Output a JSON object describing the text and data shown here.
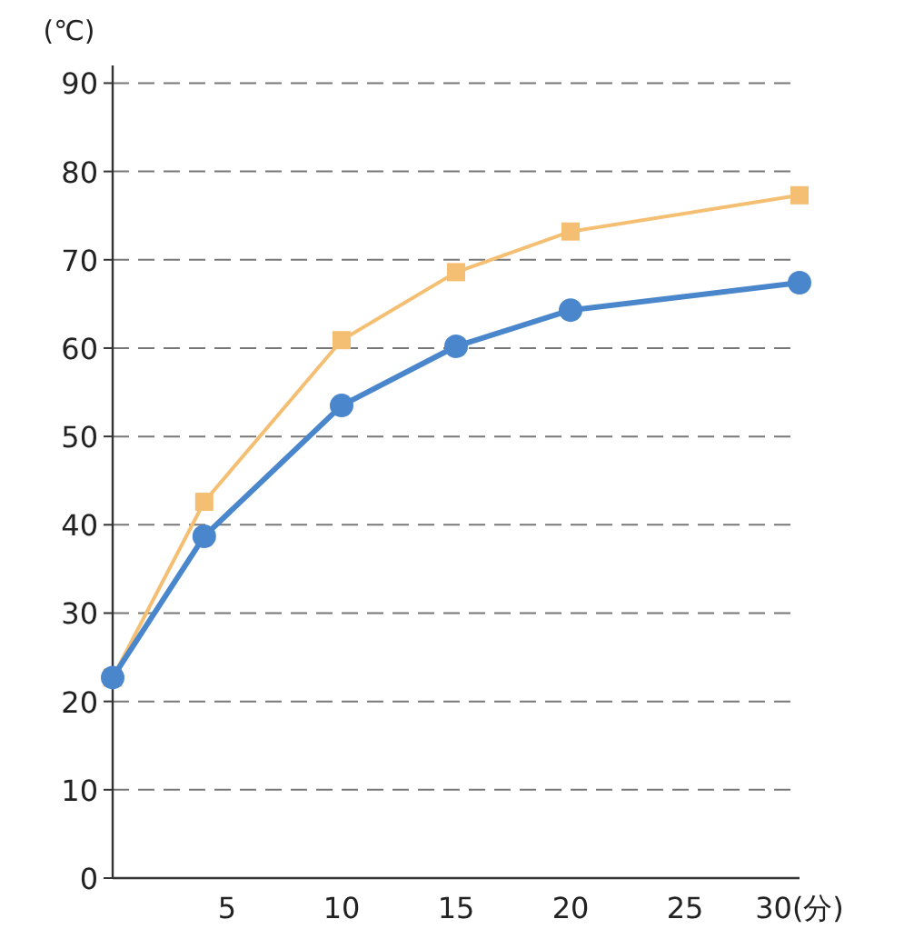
{
  "chart_data": {
    "type": "line",
    "ylabel": "(℃)",
    "x": [
      0,
      4,
      10,
      15,
      20,
      30
    ],
    "series": [
      {
        "color": "#f5bf73",
        "values": [
          22.7,
          42.6,
          60.9,
          68.6,
          73.2,
          77.3
        ],
        "marker": "square"
      },
      {
        "color": "#4a86cc",
        "values": [
          22.7,
          38.7,
          53.5,
          60.2,
          64.3,
          67.4
        ],
        "marker": "circle"
      }
    ],
    "xlim": [
      0,
      30
    ],
    "xticks": [
      5,
      10,
      15,
      20,
      25,
      {
        "value": 30,
        "label": "30(分)"
      }
    ],
    "ylim": [
      0,
      92
    ],
    "yticks": [
      0,
      10,
      20,
      30,
      40,
      50,
      60,
      70,
      80,
      90
    ],
    "grid": "y"
  }
}
